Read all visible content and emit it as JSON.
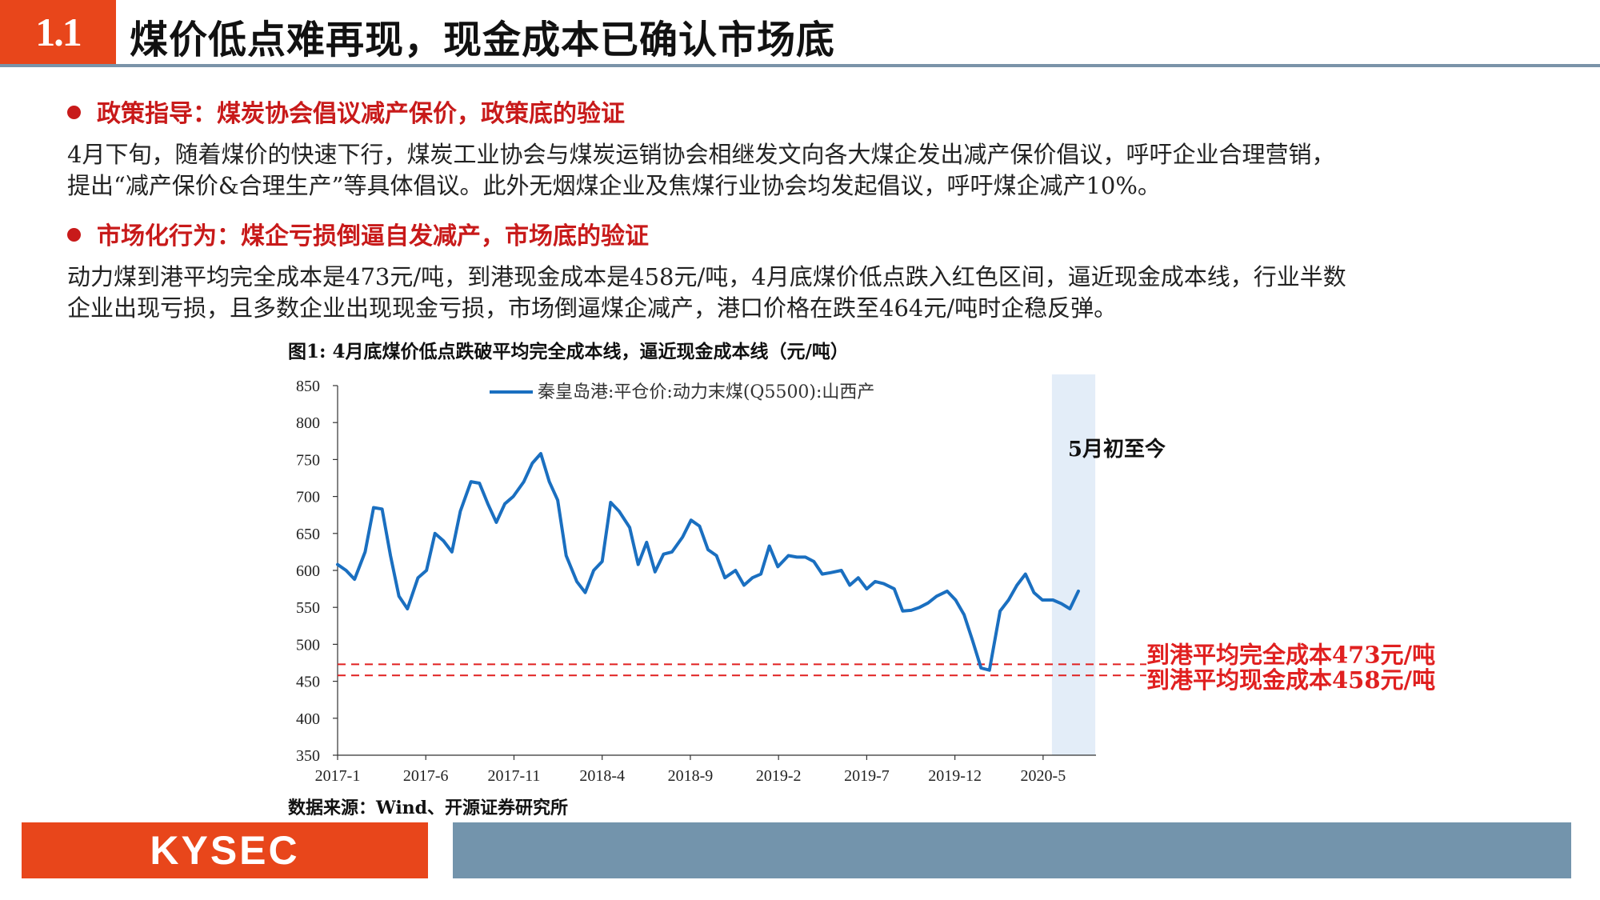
{
  "header": {
    "number": "1.1",
    "title": "煤价低点难再现，现金成本已确认市场底"
  },
  "sections": [
    {
      "heading": "政策指导：煤炭协会倡议减产保价，政策底的验证",
      "lines": [
        "4月下旬，随着煤价的快速下行，煤炭工业协会与煤炭运销协会相继发文向各大煤企发出减产保价倡议，呼吁企业合理营销，",
        "提出“减产保价&合理生产”等具体倡议。此外无烟煤企业及焦煤行业协会均发起倡议，呼吁煤企减产10%。"
      ]
    },
    {
      "heading": "市场化行为：煤企亏损倒逼自发减产，市场底的验证",
      "lines": [
        "动力煤到港平均完全成本是473元/吨，到港现金成本是458元/吨，4月底煤价低点跌入红色区间，逼近现金成本线，行业半数",
        "企业出现亏损，且多数企业出现现金亏损，市场倒逼煤企减产，港口价格在跌至464元/吨时企稳反弹。"
      ]
    }
  ],
  "figure": {
    "title": "图1:  4月底煤价低点跌破平均完全成本线，逼近现金成本线（元/吨）",
    "source": "数据来源：Wind、开源证券研究所"
  },
  "footer": {
    "logo": "KYSEC"
  },
  "colors": {
    "accent": "#e8461b",
    "line": "#1a6fc0",
    "threshold": "#e02020",
    "band": "#e3edf8",
    "footer_bar": "#7394ac"
  },
  "chart_data": {
    "type": "line",
    "x_ticks": [
      "2017-1",
      "2017-6",
      "2017-11",
      "2018-4",
      "2018-9",
      "2019-2",
      "2019-7",
      "2019-12",
      "2020-5"
    ],
    "x_start": "2017-1",
    "x_end": "2020-7",
    "ylim": [
      350,
      850
    ],
    "y_ticks": [
      350,
      400,
      450,
      500,
      550,
      600,
      650,
      700,
      750,
      800,
      850
    ],
    "series": [
      {
        "name": "秦皇岛港:平仓价:动力末煤(Q5500):山西产",
        "x": [
          2017.0,
          2017.04,
          2017.08,
          2017.13,
          2017.17,
          2017.21,
          2017.25,
          2017.29,
          2017.33,
          2017.38,
          2017.42,
          2017.46,
          2017.5,
          2017.54,
          2017.58,
          2017.63,
          2017.67,
          2017.71,
          2017.75,
          2017.79,
          2017.83,
          2017.88,
          2017.92,
          2017.96,
          2018.0,
          2018.04,
          2018.08,
          2018.13,
          2018.17,
          2018.21,
          2018.25,
          2018.29,
          2018.33,
          2018.38,
          2018.42,
          2018.46,
          2018.5,
          2018.54,
          2018.58,
          2018.63,
          2018.67,
          2018.71,
          2018.75,
          2018.79,
          2018.83,
          2018.88,
          2018.92,
          2018.96,
          2019.0,
          2019.04,
          2019.08,
          2019.13,
          2019.17,
          2019.21,
          2019.25,
          2019.29,
          2019.33,
          2019.38,
          2019.42,
          2019.46,
          2019.5,
          2019.54,
          2019.58,
          2019.63,
          2019.67,
          2019.71,
          2019.75,
          2019.79,
          2019.83,
          2019.88,
          2019.92,
          2019.96,
          2020.0,
          2020.04,
          2020.08,
          2020.13,
          2020.17,
          2020.21,
          2020.25,
          2020.29,
          2020.33,
          2020.38,
          2020.42,
          2020.46,
          2020.5
        ],
        "values": [
          608,
          600,
          588,
          625,
          685,
          683,
          620,
          565,
          548,
          590,
          600,
          650,
          640,
          625,
          680,
          720,
          718,
          690,
          665,
          690,
          700,
          720,
          745,
          758,
          720,
          695,
          620,
          585,
          570,
          600,
          612,
          692,
          680,
          658,
          608,
          638,
          598,
          622,
          625,
          645,
          668,
          660,
          628,
          620,
          590,
          600,
          580,
          590,
          595,
          633,
          605,
          620,
          618,
          618,
          612,
          595,
          597,
          600,
          580,
          590,
          575,
          585,
          582,
          575,
          545,
          546,
          550,
          556,
          565,
          572,
          560,
          540,
          505,
          468,
          465,
          545,
          560,
          580,
          595,
          570,
          560,
          560,
          555,
          548,
          572
        ]
      }
    ],
    "thresholds": [
      {
        "value": 473,
        "label": "到港平均完全成本473元/吨"
      },
      {
        "value": 458,
        "label": "到港平均现金成本458元/吨"
      }
    ],
    "band": {
      "from": 2020.375,
      "to": 2020.58,
      "label": "5月初至今"
    }
  }
}
